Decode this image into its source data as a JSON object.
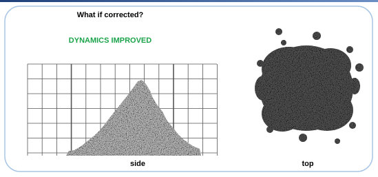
{
  "title": "What if corrected?",
  "subtitle": "DYNAMICS IMPROVED",
  "panels": [
    {
      "label": "side"
    },
    {
      "label": "top"
    }
  ]
}
